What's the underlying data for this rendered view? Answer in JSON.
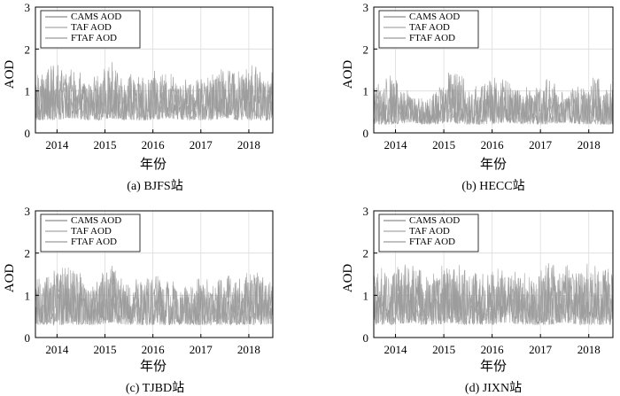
{
  "chart_data": [
    {
      "type": "line",
      "caption": "(a) BJFS站",
      "xlabel": "年份",
      "ylabel": "AOD",
      "x_ticks": [
        "2014",
        "2015",
        "2016",
        "2017",
        "2018"
      ],
      "y_ticks": [
        "0",
        "1",
        "2",
        "3"
      ],
      "xlim": [
        2013.55,
        2018.5
      ],
      "ylim": [
        0,
        3
      ],
      "grid": true,
      "legend_position": "top-left",
      "series": [
        {
          "name": "CAMS AOD",
          "color": "#8c8c8c"
        },
        {
          "name": "TAF AOD",
          "color": "#a6a6a6"
        },
        {
          "name": "FTAF AOD",
          "color": "#9a9a9a"
        }
      ],
      "x": [
        2013.55,
        2013.9,
        2014.3,
        2014.6,
        2014.9,
        2015.1,
        2015.4,
        2015.7,
        2016.0,
        2016.3,
        2016.6,
        2016.9,
        2017.2,
        2017.5,
        2017.8,
        2018.1,
        2018.4,
        2018.5
      ],
      "envelope_low": [
        0.3,
        0.3,
        0.35,
        0.3,
        0.3,
        0.35,
        0.3,
        0.3,
        0.3,
        0.35,
        0.3,
        0.3,
        0.3,
        0.35,
        0.3,
        0.3,
        0.3,
        0.3
      ],
      "envelope_high": [
        1.5,
        1.7,
        1.6,
        1.4,
        1.5,
        2.0,
        1.5,
        1.4,
        1.6,
        1.5,
        1.3,
        1.4,
        1.5,
        1.7,
        1.5,
        1.8,
        1.4,
        1.5
      ]
    },
    {
      "type": "line",
      "caption": "(b) HECC站",
      "xlabel": "年份",
      "ylabel": "AOD",
      "x_ticks": [
        "2014",
        "2015",
        "2016",
        "2017",
        "2018"
      ],
      "y_ticks": [
        "0",
        "1",
        "2",
        "3"
      ],
      "xlim": [
        2013.55,
        2018.5
      ],
      "ylim": [
        0,
        3
      ],
      "grid": true,
      "legend_position": "top-left",
      "series": [
        {
          "name": "CAMS AOD",
          "color": "#8c8c8c"
        },
        {
          "name": "TAF AOD",
          "color": "#a6a6a6"
        },
        {
          "name": "FTAF AOD",
          "color": "#9a9a9a"
        }
      ],
      "x": [
        2013.55,
        2013.9,
        2014.3,
        2014.6,
        2014.9,
        2015.1,
        2015.4,
        2015.7,
        2016.0,
        2016.3,
        2016.6,
        2016.9,
        2017.2,
        2017.5,
        2017.8,
        2018.1,
        2018.4,
        2018.5
      ],
      "envelope_low": [
        0.2,
        0.2,
        0.25,
        0.2,
        0.2,
        0.25,
        0.2,
        0.2,
        0.2,
        0.25,
        0.2,
        0.2,
        0.2,
        0.25,
        0.2,
        0.2,
        0.2,
        0.2
      ],
      "envelope_high": [
        1.2,
        1.5,
        1.0,
        0.9,
        1.2,
        1.6,
        1.4,
        1.1,
        1.5,
        1.3,
        1.1,
        1.2,
        1.4,
        1.0,
        1.2,
        1.5,
        1.1,
        1.3
      ]
    },
    {
      "type": "line",
      "caption": "(c) TJBD站",
      "xlabel": "年份",
      "ylabel": "AOD",
      "x_ticks": [
        "2014",
        "2015",
        "2016",
        "2017",
        "2018"
      ],
      "y_ticks": [
        "0",
        "1",
        "2",
        "3"
      ],
      "xlim": [
        2013.55,
        2018.5
      ],
      "ylim": [
        0,
        3
      ],
      "grid": true,
      "legend_position": "top-left",
      "series": [
        {
          "name": "CAMS AOD",
          "color": "#8c8c8c"
        },
        {
          "name": "TAF AOD",
          "color": "#a6a6a6"
        },
        {
          "name": "FTAF AOD",
          "color": "#9a9a9a"
        }
      ],
      "x": [
        2013.55,
        2013.9,
        2014.3,
        2014.6,
        2014.9,
        2015.1,
        2015.4,
        2015.7,
        2016.0,
        2016.3,
        2016.6,
        2016.9,
        2017.2,
        2017.5,
        2017.8,
        2018.1,
        2018.4,
        2018.5
      ],
      "envelope_low": [
        0.3,
        0.3,
        0.3,
        0.3,
        0.3,
        0.35,
        0.3,
        0.3,
        0.3,
        0.3,
        0.3,
        0.3,
        0.3,
        0.3,
        0.3,
        0.3,
        0.3,
        0.3
      ],
      "envelope_high": [
        1.5,
        1.6,
        1.9,
        1.4,
        1.5,
        2.0,
        1.4,
        1.5,
        1.7,
        1.5,
        1.3,
        1.5,
        1.4,
        1.6,
        1.5,
        1.7,
        1.4,
        1.5
      ]
    },
    {
      "type": "line",
      "caption": "(d) JIXN站",
      "xlabel": "年份",
      "ylabel": "AOD",
      "x_ticks": [
        "2014",
        "2015",
        "2016",
        "2017",
        "2018"
      ],
      "y_ticks": [
        "0",
        "1",
        "2",
        "3"
      ],
      "xlim": [
        2013.55,
        2018.5
      ],
      "ylim": [
        0,
        3
      ],
      "grid": true,
      "legend_position": "top-left",
      "series": [
        {
          "name": "CAMS AOD",
          "color": "#8c8c8c"
        },
        {
          "name": "TAF AOD",
          "color": "#a6a6a6"
        },
        {
          "name": "FTAF AOD",
          "color": "#9a9a9a"
        }
      ],
      "x": [
        2013.55,
        2013.9,
        2014.3,
        2014.6,
        2014.9,
        2015.1,
        2015.4,
        2015.7,
        2016.0,
        2016.3,
        2016.6,
        2016.9,
        2017.2,
        2017.5,
        2017.8,
        2018.1,
        2018.4,
        2018.5
      ],
      "envelope_low": [
        0.3,
        0.3,
        0.35,
        0.3,
        0.3,
        0.35,
        0.3,
        0.3,
        0.3,
        0.35,
        0.3,
        0.3,
        0.3,
        0.35,
        0.3,
        0.3,
        0.3,
        0.3
      ],
      "envelope_high": [
        1.6,
        1.7,
        1.9,
        1.6,
        1.7,
        1.9,
        1.7,
        1.6,
        1.8,
        1.7,
        1.6,
        1.7,
        1.9,
        1.8,
        1.7,
        1.9,
        1.7,
        1.8
      ]
    }
  ]
}
